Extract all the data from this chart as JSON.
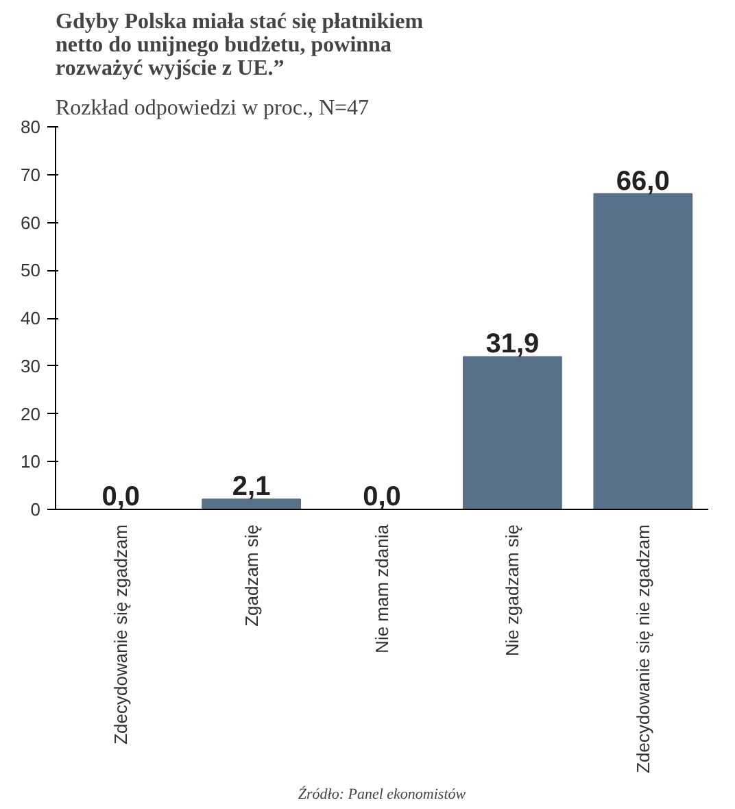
{
  "chart_data": {
    "type": "bar",
    "title": "Gdyby Polska miała stać się płatnikiem netto do unijnego budżetu, powinna rozważyć wyjście z UE.”",
    "subtitle": "Rozkład odpowiedzi w proc., N=47",
    "categories": [
      "Zdecydowanie się zgadzam",
      "Zgadzam się",
      "Nie mam zdania",
      "Nie zgadzam się",
      "Zdecydowanie się nie zgadzam"
    ],
    "values": [
      0.0,
      2.1,
      0.0,
      31.9,
      66.0
    ],
    "color": "#587089",
    "value_labels": [
      "0,0",
      "2,1",
      "0,0",
      "31,9",
      "66,0"
    ],
    "ylim": [
      0,
      80
    ],
    "yticks": [
      0,
      10,
      20,
      30,
      40,
      50,
      60,
      70,
      80
    ],
    "grid": false,
    "annotations": [
      "Źródło: Panel ekonomistów"
    ]
  }
}
